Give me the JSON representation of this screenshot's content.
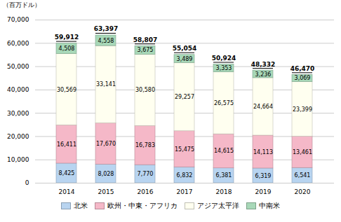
{
  "chart_data": {
    "type": "bar",
    "stacked": true,
    "categories": [
      "2014",
      "2015",
      "2016",
      "2017",
      "2018",
      "2019",
      "2020"
    ],
    "series": [
      {
        "name": "北米",
        "color": "#b8d4f0",
        "values": [
          8425,
          8028,
          7770,
          6832,
          6381,
          6319,
          6541
        ],
        "value_labels": [
          "8,425",
          "8,028",
          "7,770",
          "6,832",
          "6,381",
          "6,319",
          "6,541"
        ]
      },
      {
        "name": "欧州・中東・アフリカ",
        "color": "#f5b8c8",
        "values": [
          16411,
          17670,
          16783,
          15475,
          14615,
          14113,
          13461
        ],
        "value_labels": [
          "16,411",
          "17,670",
          "16,783",
          "15,475",
          "14,615",
          "14,113",
          "13,461"
        ]
      },
      {
        "name": "アジア太平洋",
        "color": "#fffff0",
        "values": [
          30569,
          33141,
          30580,
          29257,
          26575,
          24664,
          23399
        ],
        "value_labels": [
          "30,569",
          "33,141",
          "30,580",
          "29,257",
          "26,575",
          "24,664",
          "23,399"
        ]
      },
      {
        "name": "中南米",
        "color": "#a8d8b8",
        "values": [
          4508,
          4558,
          3675,
          3489,
          3353,
          3236,
          3069
        ],
        "value_labels": [
          "4,508",
          "4,558",
          "3,675",
          "3,489",
          "3,353",
          "3,236",
          "3,069"
        ]
      }
    ],
    "totals": [
      59912,
      63397,
      58807,
      55054,
      50924,
      48332,
      46470
    ],
    "total_labels": [
      "59,912",
      "63,397",
      "58,807",
      "55,054",
      "50,924",
      "48,332",
      "46,470"
    ],
    "ylabel": "（百万ドル）",
    "ylim": [
      0,
      70000
    ],
    "yticks": [
      0,
      {
        "value": 10000,
        "label": "10,000"
      },
      {
        "value": 20000,
        "label": "20,000"
      },
      {
        "value": 30000,
        "label": "30,000"
      },
      {
        "value": 40000,
        "label": "40,000"
      },
      {
        "value": 50000,
        "label": "50,000"
      },
      {
        "value": 60000,
        "label": "60,000"
      },
      {
        "value": 70000,
        "label": "70,000"
      }
    ],
    "grid": true,
    "data_labels": true,
    "legend": "bottom"
  }
}
